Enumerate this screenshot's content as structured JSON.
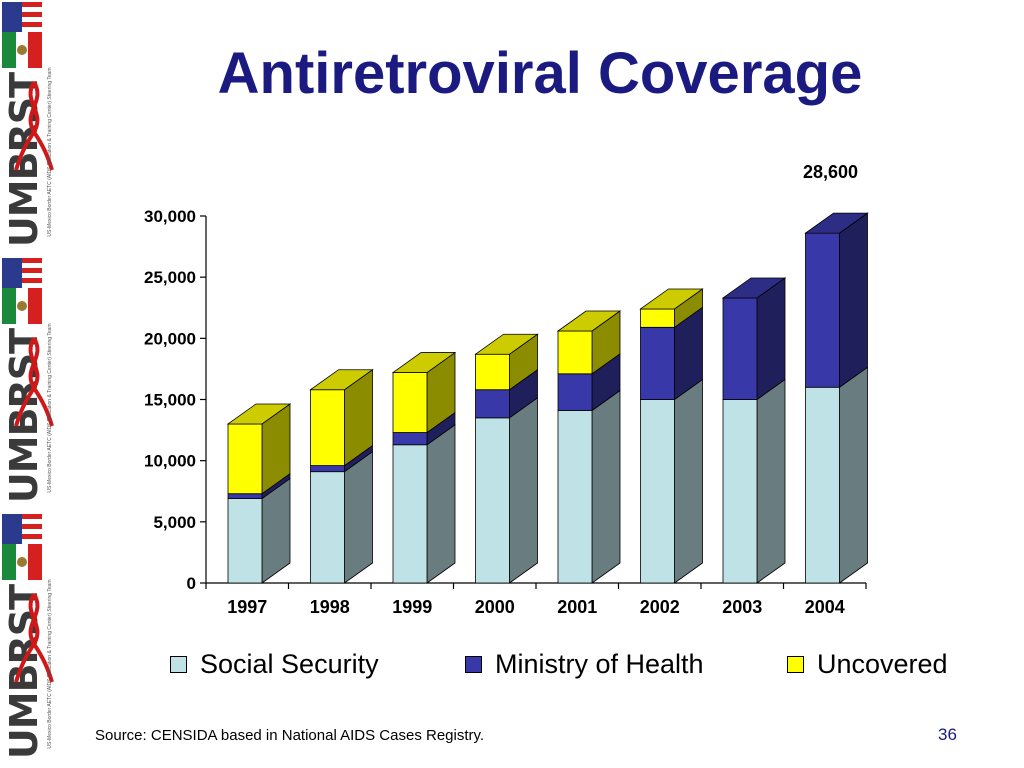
{
  "slide": {
    "title": "Antiretroviral Coverage",
    "source": "Source:  CENSIDA based in National AIDS Cases Registry.",
    "page_number": "36"
  },
  "sidebar": {
    "logo_text": "UMBRST",
    "logo_subtext": "US-Mexico Border AETC (AIDS Education & Training Center) Steering Team",
    "flag_colors": {
      "us_red": "#d62020",
      "us_blue": "#2a3a8c",
      "mx_green": "#1a8a3a",
      "mx_red": "#d62020"
    },
    "ribbon_color": "#d01818"
  },
  "chart_data": {
    "type": "bar",
    "stacked": true,
    "three_d": true,
    "categories": [
      "1997",
      "1998",
      "1999",
      "2000",
      "2001",
      "2002",
      "2003",
      "2004"
    ],
    "series": [
      {
        "name": "Social Security",
        "color": "#bfe2e6",
        "values": [
          6900,
          9100,
          11300,
          13500,
          14100,
          15000,
          15000,
          16000
        ]
      },
      {
        "name": "Ministry of Health",
        "color": "#3838a8",
        "values": [
          400,
          500,
          1000,
          2300,
          3000,
          5900,
          8300,
          12600
        ]
      },
      {
        "name": "Uncovered",
        "color": "#ffff00",
        "values": [
          5700,
          6200,
          4900,
          2900,
          3500,
          1500,
          0,
          0
        ]
      }
    ],
    "ylim": [
      0,
      30000
    ],
    "yticks": [
      0,
      5000,
      10000,
      15000,
      20000,
      25000,
      30000
    ],
    "ytick_labels": [
      "0",
      "5,000",
      "10,000",
      "15,000",
      "20,000",
      "25,000",
      "30,000"
    ],
    "annotation": {
      "text": "28,600",
      "category": "2004"
    },
    "legend_position": "bottom",
    "grid": false
  }
}
